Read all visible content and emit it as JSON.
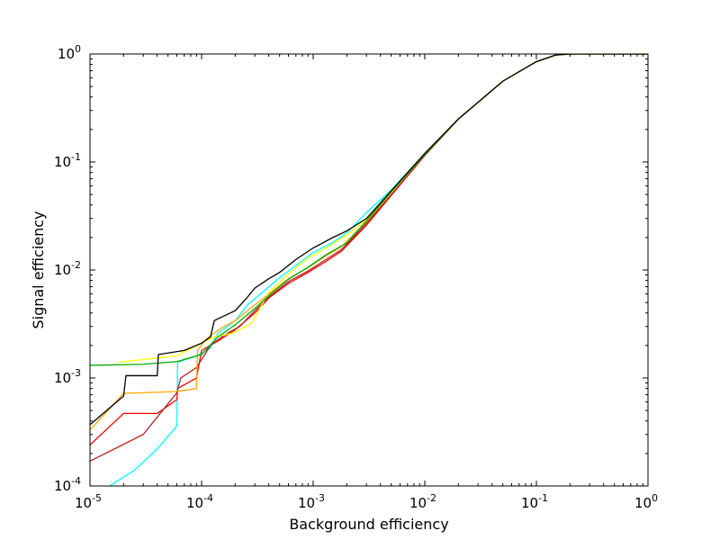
{
  "chart_data": {
    "type": "line",
    "title": "",
    "xlabel": "Background efficiency",
    "ylabel": "Signal efficiency",
    "xscale": "log",
    "yscale": "log",
    "xlim": [
      1e-05,
      1
    ],
    "ylim": [
      0.0001,
      1
    ],
    "grid": false,
    "legend": "none",
    "x_ticks": [
      {
        "base": "10",
        "exp": "-5",
        "value": 1e-05
      },
      {
        "base": "10",
        "exp": "-4",
        "value": 0.0001
      },
      {
        "base": "10",
        "exp": "-3",
        "value": 0.001
      },
      {
        "base": "10",
        "exp": "-2",
        "value": 0.01
      },
      {
        "base": "10",
        "exp": "-1",
        "value": 0.1
      },
      {
        "base": "10",
        "exp": "0",
        "value": 1
      }
    ],
    "y_ticks": [
      {
        "base": "10",
        "exp": "-4",
        "value": 0.0001
      },
      {
        "base": "10",
        "exp": "-3",
        "value": 0.001
      },
      {
        "base": "10",
        "exp": "-2",
        "value": 0.01
      },
      {
        "base": "10",
        "exp": "-1",
        "value": 0.1
      },
      {
        "base": "10",
        "exp": "0",
        "value": 1
      }
    ],
    "series": [
      {
        "color": "#00ffff",
        "points": [
          [
            1.5e-05,
            0.0001
          ],
          [
            2.5e-05,
            0.00014
          ],
          [
            4e-05,
            0.00022
          ],
          [
            6e-05,
            0.00036
          ],
          [
            6.1e-05,
            0.0014
          ],
          [
            9e-05,
            0.0016
          ],
          [
            0.00012,
            0.0019
          ],
          [
            0.00014,
            0.0026
          ],
          [
            0.0002,
            0.0034
          ],
          [
            0.00026,
            0.0048
          ],
          [
            0.00035,
            0.0062
          ],
          [
            0.0005,
            0.0085
          ],
          [
            0.0007,
            0.011
          ],
          [
            0.001,
            0.0145
          ],
          [
            0.0015,
            0.018
          ],
          [
            0.002,
            0.022
          ],
          [
            0.003,
            0.034
          ],
          [
            0.005,
            0.055
          ],
          [
            0.01,
            0.12
          ],
          [
            0.02,
            0.25
          ],
          [
            0.05,
            0.56
          ],
          [
            0.1,
            0.85
          ],
          [
            0.15,
            0.98
          ],
          [
            0.2,
            1.0
          ],
          [
            1,
            1.0
          ]
        ]
      },
      {
        "color": "#ff0000",
        "points": [
          [
            1e-05,
            0.00024
          ],
          [
            2e-05,
            0.00047
          ],
          [
            4e-05,
            0.00047
          ],
          [
            6e-05,
            0.00063
          ],
          [
            6.1e-05,
            0.0008
          ],
          [
            9e-05,
            0.001
          ],
          [
            0.0001,
            0.0018
          ],
          [
            0.00014,
            0.0022
          ],
          [
            0.0002,
            0.0028
          ],
          [
            0.0003,
            0.004
          ],
          [
            0.0004,
            0.0055
          ],
          [
            0.0006,
            0.0075
          ],
          [
            0.0009,
            0.0095
          ],
          [
            0.0013,
            0.012
          ],
          [
            0.0018,
            0.015
          ],
          [
            0.003,
            0.026
          ],
          [
            0.005,
            0.049
          ],
          [
            0.01,
            0.115
          ],
          [
            0.02,
            0.25
          ],
          [
            0.05,
            0.56
          ],
          [
            0.1,
            0.85
          ],
          [
            0.15,
            0.98
          ],
          [
            0.2,
            1.0
          ],
          [
            1,
            1.0
          ]
        ]
      },
      {
        "color": "#b22222",
        "points": [
          [
            1e-05,
            0.00017
          ],
          [
            3e-05,
            0.0003
          ],
          [
            6e-05,
            0.00073
          ],
          [
            6.5e-05,
            0.001
          ],
          [
            9e-05,
            0.00125
          ],
          [
            0.00012,
            0.002
          ],
          [
            0.00016,
            0.0025
          ],
          [
            0.00022,
            0.003
          ],
          [
            0.0003,
            0.0042
          ],
          [
            0.0004,
            0.0056
          ],
          [
            0.0006,
            0.0078
          ],
          [
            0.0009,
            0.0098
          ],
          [
            0.0013,
            0.0125
          ],
          [
            0.0018,
            0.0155
          ],
          [
            0.003,
            0.027
          ],
          [
            0.005,
            0.05
          ],
          [
            0.01,
            0.115
          ],
          [
            0.02,
            0.25
          ],
          [
            0.05,
            0.56
          ],
          [
            0.1,
            0.85
          ],
          [
            0.15,
            0.98
          ],
          [
            0.2,
            1.0
          ],
          [
            1,
            1.0
          ]
        ]
      },
      {
        "color": "#ffa500",
        "points": [
          [
            1e-05,
            0.00033
          ],
          [
            2e-05,
            0.00072
          ],
          [
            6e-05,
            0.00075
          ],
          [
            9e-05,
            0.0008
          ],
          [
            9.2e-05,
            0.0018
          ],
          [
            0.00011,
            0.0023
          ],
          [
            0.00015,
            0.0029
          ],
          [
            0.0002,
            0.0034
          ],
          [
            0.00028,
            0.0045
          ],
          [
            0.0004,
            0.006
          ],
          [
            0.0006,
            0.0083
          ],
          [
            0.0009,
            0.0105
          ],
          [
            0.0013,
            0.0135
          ],
          [
            0.0018,
            0.0165
          ],
          [
            0.003,
            0.028
          ],
          [
            0.005,
            0.052
          ],
          [
            0.01,
            0.118
          ],
          [
            0.02,
            0.25
          ],
          [
            0.05,
            0.56
          ],
          [
            0.1,
            0.85
          ],
          [
            0.15,
            0.98
          ],
          [
            0.2,
            1.0
          ],
          [
            1,
            1.0
          ]
        ]
      },
      {
        "color": "#ffff00",
        "points": [
          [
            1.8e-05,
            0.0014
          ],
          [
            6e-05,
            0.0016
          ],
          [
            0.0001,
            0.0021
          ],
          [
            0.00013,
            0.0024
          ],
          [
            0.00019,
            0.0026
          ],
          [
            0.00028,
            0.0032
          ],
          [
            0.00032,
            0.0041
          ],
          [
            0.0004,
            0.0062
          ],
          [
            0.0006,
            0.0092
          ],
          [
            0.0009,
            0.0128
          ],
          [
            0.0013,
            0.016
          ],
          [
            0.002,
            0.021
          ],
          [
            0.003,
            0.029
          ],
          [
            0.005,
            0.052
          ],
          [
            0.01,
            0.12
          ],
          [
            0.02,
            0.25
          ],
          [
            0.05,
            0.56
          ],
          [
            0.1,
            0.85
          ],
          [
            0.15,
            0.98
          ],
          [
            0.2,
            1.0
          ],
          [
            1,
            1.0
          ]
        ]
      },
      {
        "color": "#00aa00",
        "points": [
          [
            1e-05,
            0.00131
          ],
          [
            3e-05,
            0.00134
          ],
          [
            6e-05,
            0.00142
          ],
          [
            0.0001,
            0.00165
          ],
          [
            0.00014,
            0.0024
          ],
          [
            0.0002,
            0.0031
          ],
          [
            0.0003,
            0.0044
          ],
          [
            0.0004,
            0.0058
          ],
          [
            0.0006,
            0.0082
          ],
          [
            0.0009,
            0.0106
          ],
          [
            0.0013,
            0.0138
          ],
          [
            0.002,
            0.0178
          ],
          [
            0.003,
            0.0285
          ],
          [
            0.005,
            0.053
          ],
          [
            0.01,
            0.118
          ],
          [
            0.02,
            0.25
          ],
          [
            0.05,
            0.56
          ],
          [
            0.1,
            0.85
          ],
          [
            0.15,
            0.98
          ],
          [
            0.2,
            1.0
          ],
          [
            1,
            1.0
          ]
        ]
      },
      {
        "color": "#000000",
        "points": [
          [
            1e-05,
            0.00037
          ],
          [
            2e-05,
            0.00068
          ],
          [
            2.1e-05,
            0.00105
          ],
          [
            4e-05,
            0.00105
          ],
          [
            4.1e-05,
            0.00165
          ],
          [
            7e-05,
            0.0018
          ],
          [
            0.0001,
            0.0021
          ],
          [
            0.00012,
            0.0024
          ],
          [
            0.00013,
            0.0034
          ],
          [
            0.0002,
            0.0042
          ],
          [
            0.00025,
            0.0054
          ],
          [
            0.0003,
            0.0068
          ],
          [
            0.0004,
            0.0083
          ],
          [
            0.0005,
            0.0095
          ],
          [
            0.0007,
            0.0125
          ],
          [
            0.001,
            0.016
          ],
          [
            0.0015,
            0.02
          ],
          [
            0.002,
            0.023
          ],
          [
            0.003,
            0.03
          ],
          [
            0.005,
            0.054
          ],
          [
            0.01,
            0.12
          ],
          [
            0.02,
            0.25
          ],
          [
            0.05,
            0.56
          ],
          [
            0.1,
            0.85
          ],
          [
            0.15,
            0.98
          ],
          [
            0.2,
            1.0
          ],
          [
            1,
            1.0
          ]
        ]
      }
    ]
  }
}
